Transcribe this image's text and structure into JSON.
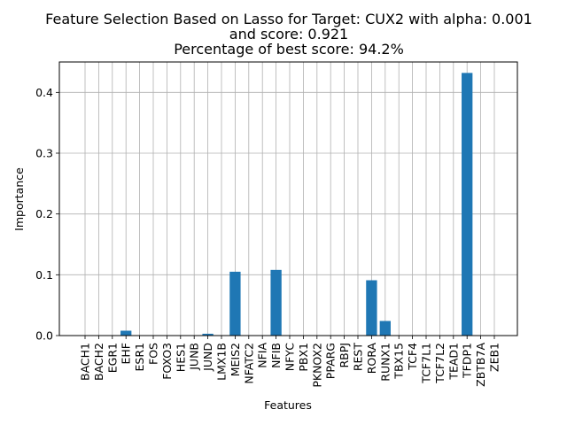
{
  "chart_data": {
    "type": "bar",
    "title_lines": [
      "Feature Selection Based on Lasso for Target: CUX2 with alpha: 0.001",
      "and score: 0.921",
      "Percentage of best score: 94.2%"
    ],
    "xlabel": "Features",
    "ylabel": "Importance",
    "ylim": [
      0,
      0.45
    ],
    "yticks": [
      0.0,
      0.1,
      0.2,
      0.3,
      0.4
    ],
    "ytick_labels": [
      "0.0",
      "0.1",
      "0.2",
      "0.3",
      "0.4"
    ],
    "grid": true,
    "bar_color": "#1f77b4",
    "categories": [
      "BACH1",
      "BACH2",
      "EGR1",
      "EHF",
      "ESR1",
      "FOS",
      "FOXO3",
      "HES1",
      "JUNB",
      "JUND",
      "LMX1B",
      "MEIS2",
      "NFATC2",
      "NFIA",
      "NFIB",
      "NFYC",
      "PBX1",
      "PKNOX2",
      "PPARG",
      "RBPJ",
      "REST",
      "RORA",
      "RUNX1",
      "TBX15",
      "TCF4",
      "TCF7L1",
      "TCF7L2",
      "TEAD1",
      "TFDP1",
      "ZBTB7A",
      "ZEB1"
    ],
    "values": [
      0,
      0,
      0,
      0.008,
      0,
      0,
      0,
      0,
      0,
      0.003,
      0,
      0.105,
      0,
      0,
      0.108,
      0,
      0,
      0,
      0,
      0,
      0,
      0.091,
      0.024,
      0,
      0,
      0,
      0,
      0,
      0.432,
      0,
      0
    ]
  }
}
